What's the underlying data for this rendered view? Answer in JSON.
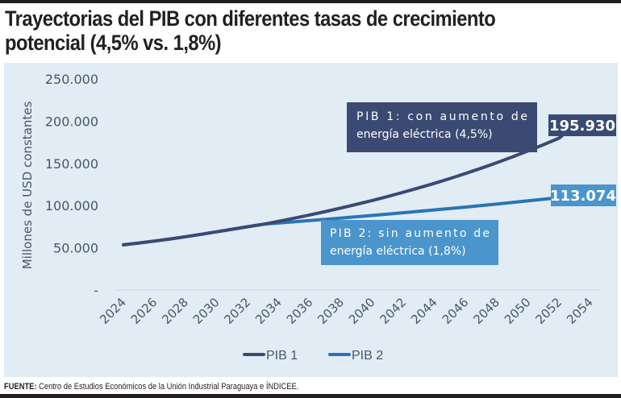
{
  "title": "Trayectorias del PIB con diferentes tasas de crecimiento potencial (4,5% vs. 1,8%)",
  "title_lines": [
    "Trayectorias del PIB con diferentes tasas de crecimiento",
    "potencial (4,5% vs. 1,8%)"
  ],
  "source_label": "FUENTE:",
  "source_text": " Centro de Estudios Económicos de la Unión Industrial Paraguaya e ÍNDICEE.",
  "colors": {
    "pib1": "#3a4a72",
    "pib2": "#2a74b5",
    "pib2_box": "#4a95cc",
    "panel": "#e2ecf5",
    "axis_text": "#4a5568"
  },
  "chart_data": {
    "type": "line",
    "title": "Trayectorias del PIB con diferentes tasas de crecimiento potencial (4,5% vs. 1,8%)",
    "xlabel": "",
    "ylabel": "Millones de USD constantes",
    "ylim": [
      0,
      250000
    ],
    "yticks": [
      0,
      50000,
      100000,
      150000,
      200000,
      250000
    ],
    "ytick_labels": [
      "-",
      "50.000",
      "100.000",
      "150.000",
      "200.000",
      "250.000"
    ],
    "xtick_labels": [
      "2024",
      "2026",
      "2028",
      "2030",
      "2032",
      "2034",
      "2036",
      "2038",
      "2040",
      "2042",
      "2044",
      "2046",
      "2048",
      "2050",
      "2052",
      "2054"
    ],
    "x": [
      2024,
      2025,
      2026,
      2027,
      2028,
      2029,
      2030,
      2031,
      2032,
      2033,
      2034,
      2035,
      2036,
      2037,
      2038,
      2039,
      2040,
      2041,
      2042,
      2043,
      2044,
      2045,
      2046,
      2047,
      2048,
      2049,
      2050,
      2051,
      2052,
      2053
    ],
    "series": [
      {
        "name": "PIB 1",
        "values": [
          53500,
          55700,
          58000,
          60500,
          63200,
          66000,
          69000,
          72000,
          75000,
          78000,
          81500,
          85200,
          89000,
          93000,
          97200,
          101600,
          106100,
          110900,
          115900,
          121100,
          126500,
          132200,
          138200,
          144400,
          150900,
          157700,
          164800,
          172200,
          180000,
          195930
        ]
      },
      {
        "name": "PIB 2",
        "values": [
          53500,
          55700,
          58000,
          60500,
          63200,
          66000,
          69000,
          72000,
          75000,
          78000,
          79400,
          80800,
          82300,
          83800,
          85300,
          86800,
          88400,
          90000,
          91600,
          93200,
          94900,
          96600,
          98300,
          100100,
          101900,
          103700,
          105600,
          107500,
          109400,
          113074
        ]
      }
    ],
    "end_labels": [
      "195.930",
      "113.074"
    ],
    "annotations": [
      "PIB 1: con aumento de energía eléctrica (4,5%)",
      "PIB 2: sin aumento de energía eléctrica (1,8%)"
    ],
    "annotation_lines": [
      [
        "PIB 1: con aumento de",
        "energía eléctrica (4,5%)"
      ],
      [
        "PIB 2: sin aumento de",
        "energía eléctrica (1,8%)"
      ]
    ],
    "legend": [
      "PIB 1",
      "PIB 2"
    ],
    "legend_position": "bottom",
    "grid": false
  }
}
